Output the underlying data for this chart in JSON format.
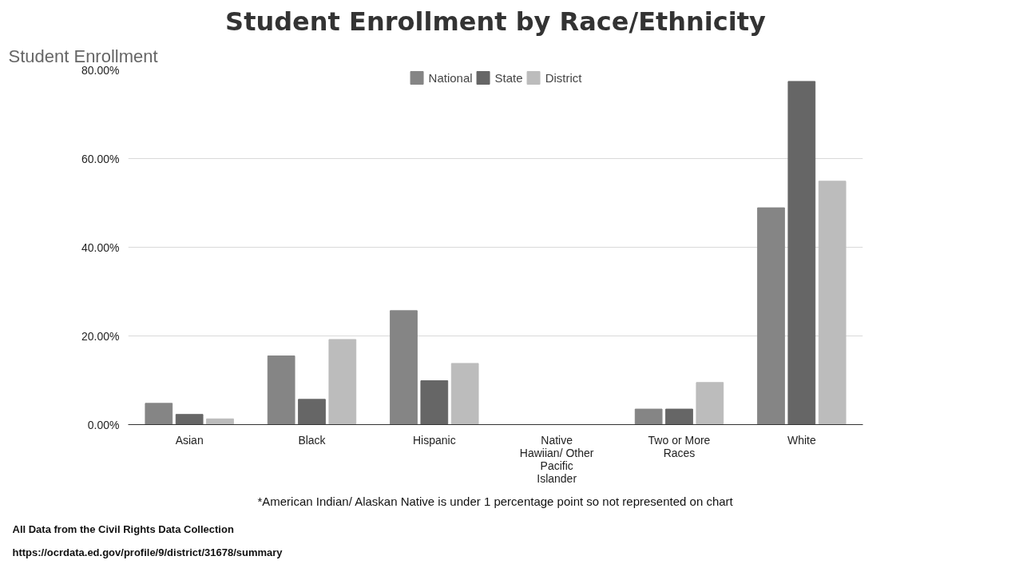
{
  "chart_data": {
    "type": "bar",
    "title": "Student Enrollment",
    "subtitle": "Student Enrollment by Race/Ethnicity",
    "categories": [
      "Asian",
      "Black",
      "Hispanic",
      "Native Hawiian/ Other Pacific Islander",
      "Two or More Races",
      "White"
    ],
    "series": [
      {
        "name": "National",
        "color": "#858585",
        "values": [
          4.8,
          15.5,
          25.7,
          0,
          3.5,
          48.9
        ]
      },
      {
        "name": "State",
        "color": "#666666",
        "values": [
          2.3,
          5.7,
          9.9,
          0,
          3.5,
          77.4
        ]
      },
      {
        "name": "District",
        "color": "#bcbcbc",
        "values": [
          1.3,
          19.2,
          13.8,
          0,
          9.5,
          54.9
        ]
      }
    ],
    "ylim": [
      0,
      80
    ],
    "yticks": [
      {
        "value": 0,
        "label": "0.00%"
      },
      {
        "value": 20,
        "label": "20.00%"
      },
      {
        "value": 40,
        "label": "40.00%"
      },
      {
        "value": 60,
        "label": "60.00%"
      },
      {
        "value": 80,
        "label": "80.00%"
      }
    ],
    "grid": "y",
    "legend": "top",
    "annotations": [
      "*American Indian/ Alaskan Native is under 1 percentage point so not represented on chart",
      "All Data from the Civil Rights Data Collection",
      "https://ocrdata.ed.gov/profile/9/district/31678/summary"
    ]
  }
}
